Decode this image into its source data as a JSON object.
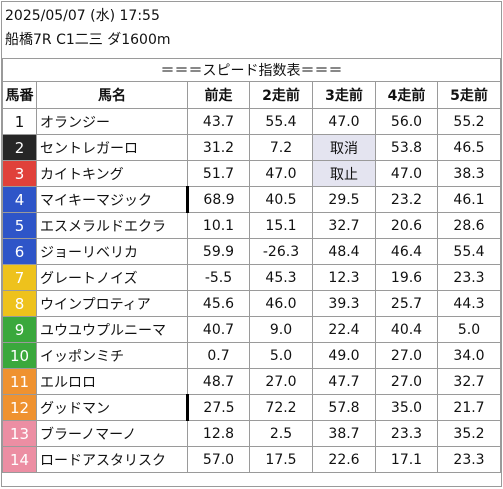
{
  "header": {
    "datetime": "2025/05/07 (水) 17:55",
    "race": "船橋7R C1二三 ダ1600m"
  },
  "table": {
    "title": "＝＝＝スピード指数表＝＝＝",
    "columns": {
      "num": "馬番",
      "name": "馬名",
      "prev1": "前走",
      "prev2": "2走前",
      "prev3": "3走前",
      "prev4": "4走前",
      "prev5": "5走前"
    },
    "rows": [
      {
        "num": "1",
        "name": "オランジー",
        "v1": "43.7",
        "v2": "55.4",
        "v3": "47.0",
        "v4": "56.0",
        "v5": "55.2",
        "bg": "#ffffff",
        "fg": "#111111"
      },
      {
        "num": "2",
        "name": "セントレガーロ",
        "v1": "31.2",
        "v2": "7.2",
        "v3": "取消",
        "v4": "53.8",
        "v5": "46.5",
        "bg": "#262626",
        "fg": "#ffffff"
      },
      {
        "num": "3",
        "name": "カイトキング",
        "v1": "51.7",
        "v2": "47.0",
        "v3": "取止",
        "v4": "47.0",
        "v5": "38.3",
        "bg": "#e0413a",
        "fg": "#ffffff"
      },
      {
        "num": "4",
        "name": "マイキーマジック",
        "v1": "68.9",
        "v2": "40.5",
        "v3": "29.5",
        "v4": "23.2",
        "v5": "46.1",
        "bg": "#2e55c8",
        "fg": "#ffffff"
      },
      {
        "num": "5",
        "name": "エスメラルドエクラ",
        "v1": "10.1",
        "v2": "15.1",
        "v3": "32.7",
        "v4": "20.6",
        "v5": "28.6",
        "bg": "#2e55c8",
        "fg": "#ffffff"
      },
      {
        "num": "6",
        "name": "ジョーリベリカ",
        "v1": "59.9",
        "v2": "-26.3",
        "v3": "48.4",
        "v4": "46.4",
        "v5": "55.4",
        "bg": "#2e55c8",
        "fg": "#ffffff"
      },
      {
        "num": "7",
        "name": "グレートノイズ",
        "v1": "-5.5",
        "v2": "45.3",
        "v3": "12.3",
        "v4": "19.6",
        "v5": "23.3",
        "bg": "#eec21c",
        "fg": "#ffffff"
      },
      {
        "num": "8",
        "name": "ウインプロティア",
        "v1": "45.6",
        "v2": "46.0",
        "v3": "39.3",
        "v4": "25.7",
        "v5": "44.3",
        "bg": "#eec21c",
        "fg": "#ffffff"
      },
      {
        "num": "9",
        "name": "ユウユウプルニーマ",
        "v1": "40.7",
        "v2": "9.0",
        "v3": "22.4",
        "v4": "40.4",
        "v5": "5.0",
        "bg": "#3aa83c",
        "fg": "#ffffff"
      },
      {
        "num": "10",
        "name": "イッポンミチ",
        "v1": "0.7",
        "v2": "5.0",
        "v3": "49.0",
        "v4": "27.0",
        "v5": "34.0",
        "bg": "#3aa83c",
        "fg": "#ffffff"
      },
      {
        "num": "11",
        "name": "エルロロ",
        "v1": "48.7",
        "v2": "27.0",
        "v3": "47.7",
        "v4": "27.0",
        "v5": "32.7",
        "bg": "#ef9230",
        "fg": "#ffffff"
      },
      {
        "num": "12",
        "name": "グッドマン",
        "v1": "27.5",
        "v2": "72.2",
        "v3": "57.8",
        "v4": "35.0",
        "v5": "21.7",
        "bg": "#ef9230",
        "fg": "#ffffff"
      },
      {
        "num": "13",
        "name": "ブラーノマーノ",
        "v1": "12.8",
        "v2": "2.5",
        "v3": "38.7",
        "v4": "23.3",
        "v5": "35.2",
        "bg": "#ec8ea3",
        "fg": "#ffffff"
      },
      {
        "num": "14",
        "name": "ロードアスタリスク",
        "v1": "57.0",
        "v2": "17.5",
        "v3": "22.6",
        "v4": "17.1",
        "v5": "23.3",
        "bg": "#ec8ea3",
        "fg": "#ffffff"
      }
    ],
    "status_highlight": "#e4e4f0",
    "interval_marker_rows": [
      "4",
      "12"
    ]
  }
}
